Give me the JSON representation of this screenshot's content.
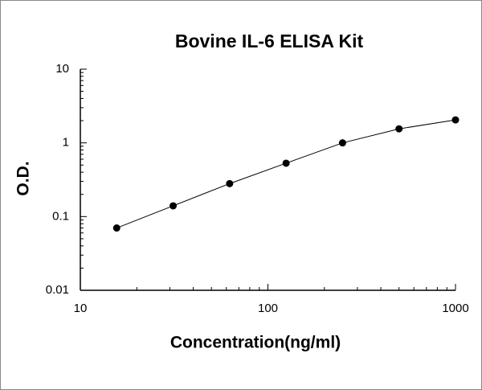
{
  "chart_data": {
    "type": "scatter",
    "title": "Bovine IL-6 ELISA Kit",
    "x_label": "Concentration(ng/ml)",
    "y_label": "O.D.",
    "x_scale": "log",
    "y_scale": "log",
    "series": [
      {
        "color": "#000000",
        "x": [
          15.625,
          31.25,
          62.5,
          125,
          250,
          500,
          1000
        ],
        "values": [
          0.07,
          0.14,
          0.28,
          0.53,
          1.0,
          1.55,
          2.05
        ]
      }
    ],
    "xlim": [
      10,
      1000
    ],
    "xticks": [
      10,
      100,
      1000
    ],
    "ylim": [
      0.01,
      10
    ],
    "yticks": [
      0.01,
      0.1,
      1,
      10
    ]
  }
}
